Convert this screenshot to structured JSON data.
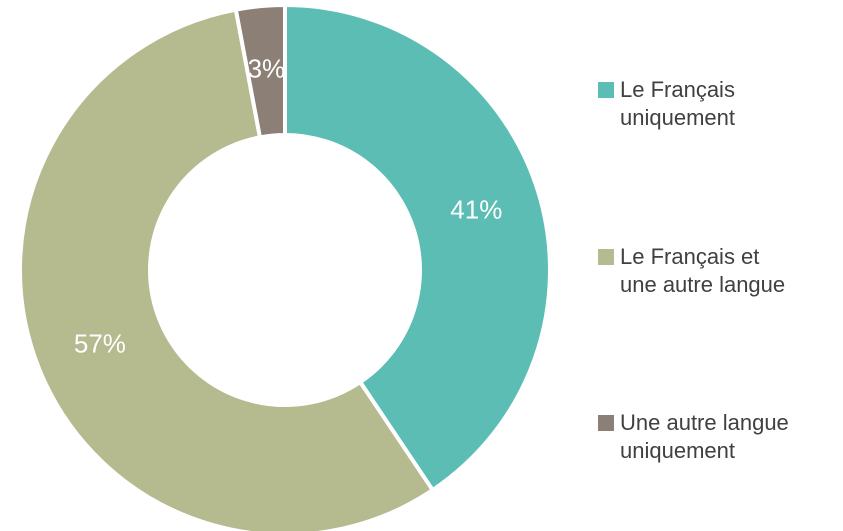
{
  "chart_data": {
    "type": "donut",
    "categories": [
      "Le Français uniquement",
      "Le Français et une autre langue",
      "Une autre langue uniquement"
    ],
    "values": [
      41,
      57,
      3
    ],
    "value_labels": [
      "41%",
      "57%",
      "3%"
    ],
    "colors": [
      "#5bbdb4",
      "#b5ba8f",
      "#8c7f76"
    ],
    "legend": "right"
  }
}
